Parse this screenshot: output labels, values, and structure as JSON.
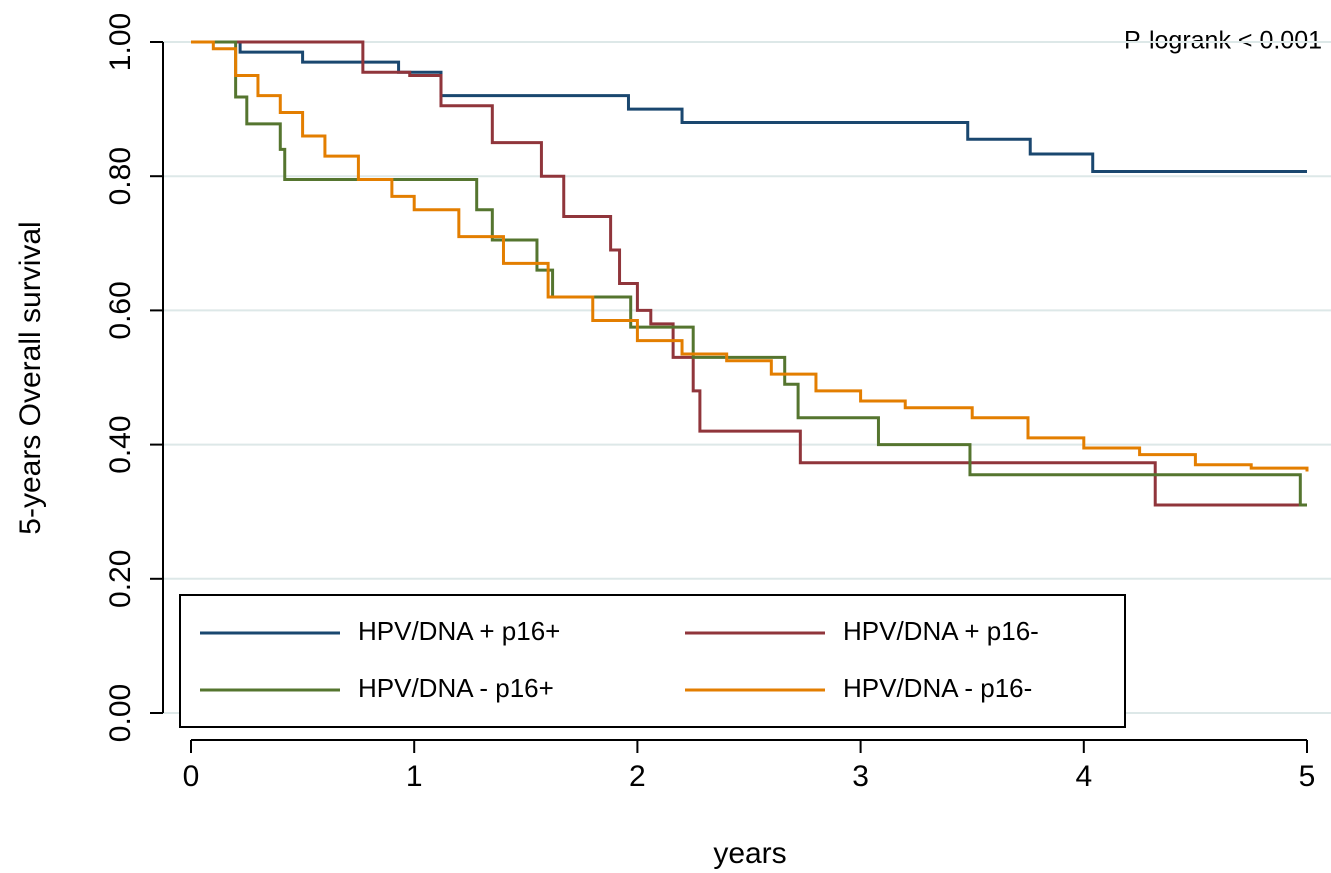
{
  "chart_data": {
    "type": "line",
    "step": "post",
    "annotation": "P-logrank < 0.001",
    "xlabel": "years",
    "ylabel": "5-years Overall survival",
    "xlim": [
      0,
      5
    ],
    "xticks": [
      0,
      1,
      2,
      3,
      4,
      5
    ],
    "ylim": [
      0,
      1
    ],
    "yticks": [
      {
        "value": 0,
        "label": "0.00"
      },
      {
        "value": 0.2,
        "label": "0.20"
      },
      {
        "value": 0.4,
        "label": "0.40"
      },
      {
        "value": 0.6,
        "label": "0.60"
      },
      {
        "value": 0.8,
        "label": "0.80"
      },
      {
        "value": 1,
        "label": "1.00"
      }
    ],
    "grid": true,
    "legend": "bottom",
    "series": [
      {
        "name": "HPV/DNA + p16+",
        "color": "#1a476f",
        "x": [
          0,
          0.22,
          0.5,
          0.93,
          1.12,
          1.96,
          2.2,
          3.48,
          3.76,
          4.04,
          5
        ],
        "values": [
          1,
          0.985,
          0.97,
          0.955,
          0.92,
          0.9,
          0.88,
          0.855,
          0.833,
          0.807,
          0.807
        ]
      },
      {
        "name": "HPV/DNA + p16-",
        "color": "#90353b",
        "x": [
          0,
          0.77,
          0.98,
          1.12,
          1.35,
          1.57,
          1.67,
          1.88,
          1.92,
          2.0,
          2.06,
          2.16,
          2.25,
          2.28,
          2.73,
          4.32,
          5
        ],
        "values": [
          1,
          0.955,
          0.95,
          0.905,
          0.85,
          0.8,
          0.74,
          0.69,
          0.64,
          0.6,
          0.58,
          0.53,
          0.48,
          0.42,
          0.373,
          0.31,
          0.31
        ]
      },
      {
        "name": "HPV/DNA - p16+",
        "color": "#55752f",
        "x": [
          0,
          0.2,
          0.25,
          0.4,
          0.42,
          1.28,
          1.35,
          1.55,
          1.62,
          1.97,
          2.25,
          2.66,
          2.72,
          3.08,
          3.49,
          4.97,
          5
        ],
        "values": [
          1,
          0.918,
          0.878,
          0.84,
          0.795,
          0.75,
          0.705,
          0.66,
          0.62,
          0.575,
          0.53,
          0.49,
          0.44,
          0.4,
          0.355,
          0.31,
          0.31
        ]
      },
      {
        "name": "HPV/DNA - p16-",
        "color": "#e37e00",
        "x": [
          0,
          0.1,
          0.2,
          0.3,
          0.4,
          0.5,
          0.6,
          0.75,
          0.9,
          1.0,
          1.2,
          1.4,
          1.6,
          1.8,
          2.0,
          2.2,
          2.4,
          2.6,
          2.8,
          3.0,
          3.2,
          3.5,
          3.75,
          4.0,
          4.25,
          4.5,
          4.75,
          5.0
        ],
        "values": [
          1,
          0.99,
          0.95,
          0.92,
          0.895,
          0.86,
          0.83,
          0.795,
          0.77,
          0.75,
          0.71,
          0.67,
          0.62,
          0.585,
          0.555,
          0.535,
          0.525,
          0.505,
          0.48,
          0.465,
          0.455,
          0.44,
          0.41,
          0.395,
          0.385,
          0.37,
          0.365,
          0.36
        ]
      }
    ]
  }
}
